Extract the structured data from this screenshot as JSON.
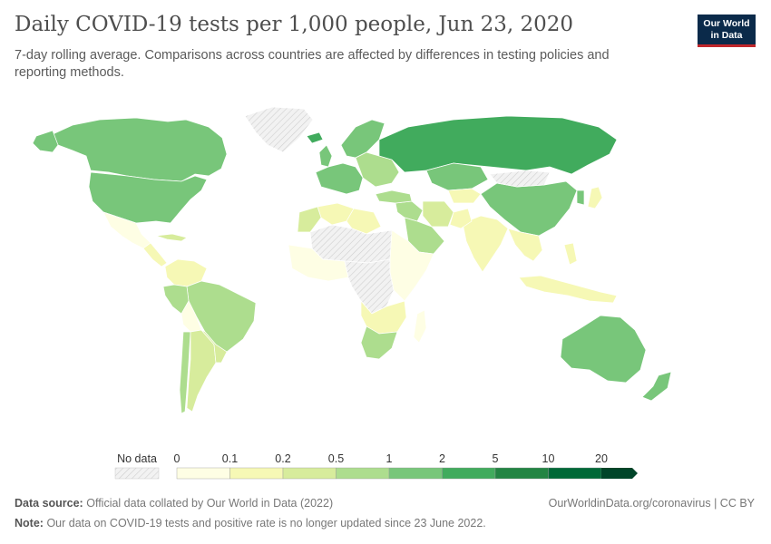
{
  "header": {
    "title": "Daily COVID-19 tests per 1,000 people, Jun 23, 2020",
    "subtitle": "7-day rolling average. Comparisons across countries are affected by differences in testing policies and reporting methods.",
    "logo_line1": "Our World",
    "logo_line2": "in Data"
  },
  "legend": {
    "no_data_label": "No data",
    "bins": [
      "0",
      "0.1",
      "0.2",
      "0.5",
      "1",
      "2",
      "5",
      "10",
      "20"
    ],
    "colors": [
      "#fefee4",
      "#f6f8b5",
      "#d7ec9c",
      "#addd8e",
      "#78c67a",
      "#41ab5d",
      "#238443",
      "#006837",
      "#004529"
    ],
    "no_data_color": "#e8e8e8"
  },
  "map_regions": [
    {
      "name": "canada",
      "bin": 4
    },
    {
      "name": "usa",
      "bin": 4
    },
    {
      "name": "alaska",
      "bin": 4
    },
    {
      "name": "greenland",
      "bin": -1
    },
    {
      "name": "mexico",
      "bin": 0
    },
    {
      "name": "central-america",
      "bin": 1
    },
    {
      "name": "caribbean",
      "bin": 2
    },
    {
      "name": "colombia-venezuela",
      "bin": 1
    },
    {
      "name": "brazil",
      "bin": 3
    },
    {
      "name": "peru",
      "bin": 3
    },
    {
      "name": "bolivia",
      "bin": 0
    },
    {
      "name": "chile",
      "bin": 3
    },
    {
      "name": "argentina",
      "bin": 2
    },
    {
      "name": "paraguay-uruguay",
      "bin": 2
    },
    {
      "name": "western-europe",
      "bin": 4
    },
    {
      "name": "scandinavia",
      "bin": 4
    },
    {
      "name": "iceland",
      "bin": 5
    },
    {
      "name": "uk-ireland",
      "bin": 4
    },
    {
      "name": "eastern-europe",
      "bin": 3
    },
    {
      "name": "russia",
      "bin": 5
    },
    {
      "name": "kazakhstan",
      "bin": 4
    },
    {
      "name": "central-asia",
      "bin": 1
    },
    {
      "name": "middle-east",
      "bin": 3
    },
    {
      "name": "saudi-arabia",
      "bin": 3
    },
    {
      "name": "turkey",
      "bin": 3
    },
    {
      "name": "iran",
      "bin": 2
    },
    {
      "name": "india",
      "bin": 1
    },
    {
      "name": "pakistan",
      "bin": 1
    },
    {
      "name": "china",
      "bin": 4
    },
    {
      "name": "mongolia",
      "bin": -1
    },
    {
      "name": "southeast-asia",
      "bin": 1
    },
    {
      "name": "japan",
      "bin": 1
    },
    {
      "name": "korea",
      "bin": 4
    },
    {
      "name": "indonesia",
      "bin": 1
    },
    {
      "name": "philippines",
      "bin": 1
    },
    {
      "name": "australia",
      "bin": 4
    },
    {
      "name": "new-zealand",
      "bin": 4
    },
    {
      "name": "north-africa",
      "bin": 1
    },
    {
      "name": "morocco",
      "bin": 2
    },
    {
      "name": "libya",
      "bin": 1
    },
    {
      "name": "sahara",
      "bin": -1
    },
    {
      "name": "west-africa",
      "bin": 0
    },
    {
      "name": "central-africa",
      "bin": -1
    },
    {
      "name": "east-africa",
      "bin": 0
    },
    {
      "name": "southern-africa",
      "bin": 1
    },
    {
      "name": "south-africa",
      "bin": 3
    },
    {
      "name": "madagascar",
      "bin": 0
    }
  ],
  "footer": {
    "source_label": "Data source:",
    "source_text": "Official data collated by Our World in Data (2022)",
    "url_text": "OurWorldinData.org/coronavirus | CC BY",
    "note_label": "Note:",
    "note_text": "Our data on COVID-19 tests and positive rate is no longer updated since 23 June 2022."
  }
}
